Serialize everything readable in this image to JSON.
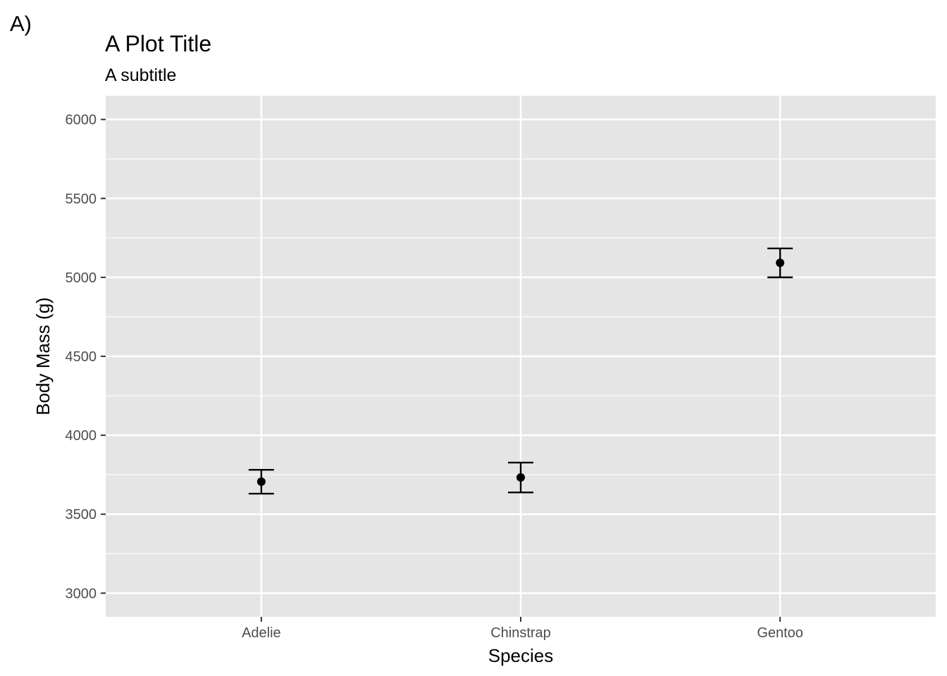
{
  "chart_data": {
    "type": "scatter",
    "tag": "A)",
    "title": "A Plot Title",
    "subtitle": "A subtitle",
    "xlabel": "Species",
    "ylabel": "Body Mass (g)",
    "categories": [
      "Adelie",
      "Chinstrap",
      "Gentoo"
    ],
    "series": [
      {
        "values": [
          3706,
          3733,
          5092
        ],
        "error_low": [
          3630,
          3638,
          5000
        ],
        "error_high": [
          3781,
          3827,
          5183
        ]
      }
    ],
    "ylim": [
      2850,
      6150
    ],
    "yticks": [
      3000,
      3500,
      4000,
      4500,
      5000,
      5500,
      6000
    ],
    "yticks_minor": [
      3250,
      3750,
      4250,
      4750,
      5250,
      5750
    ],
    "grid": true,
    "colors": {
      "panel": "#e5e5e5",
      "grid": "#ffffff",
      "point": "#000000",
      "tick_label": "#4d4d4d"
    }
  }
}
